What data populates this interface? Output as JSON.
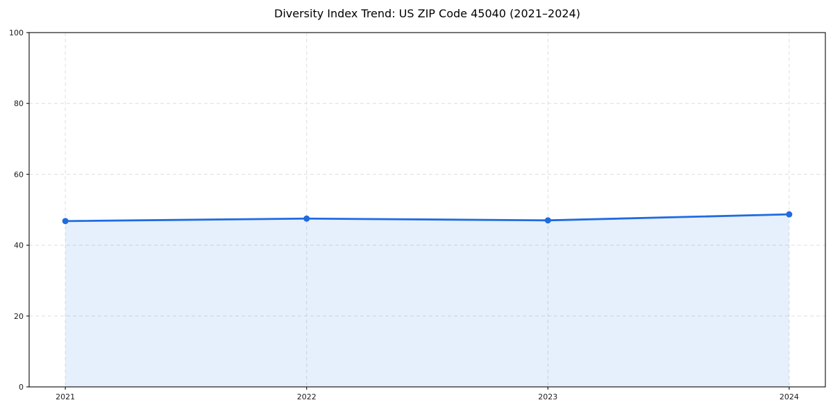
{
  "figure": {
    "background": "#ffffff"
  },
  "chart_data": {
    "type": "line",
    "title": "Diversity Index Trend: US ZIP Code 45040 (2021–2024)",
    "categories": [
      "2021",
      "2022",
      "2023",
      "2024"
    ],
    "series": [
      {
        "name": "Diversity Index",
        "values": [
          46.8,
          47.5,
          47.0,
          48.7
        ]
      }
    ],
    "xlabel": "",
    "ylabel": "",
    "ylim": [
      0,
      100
    ],
    "y_ticks": [
      0,
      20,
      40,
      60,
      80,
      100
    ],
    "grid": "dashed",
    "grid_on": true,
    "legend_position": "none",
    "area_fill_to_zero": true,
    "marker": "circle",
    "colors": {
      "line": "#1f6be0",
      "marker": "#1f6be0",
      "fill": "rgba(31, 107, 224, 0.11)",
      "grid": "#dedede",
      "spine": "#1a1a1a",
      "tick_label": "#1a1a1a",
      "title": "#000000"
    }
  }
}
